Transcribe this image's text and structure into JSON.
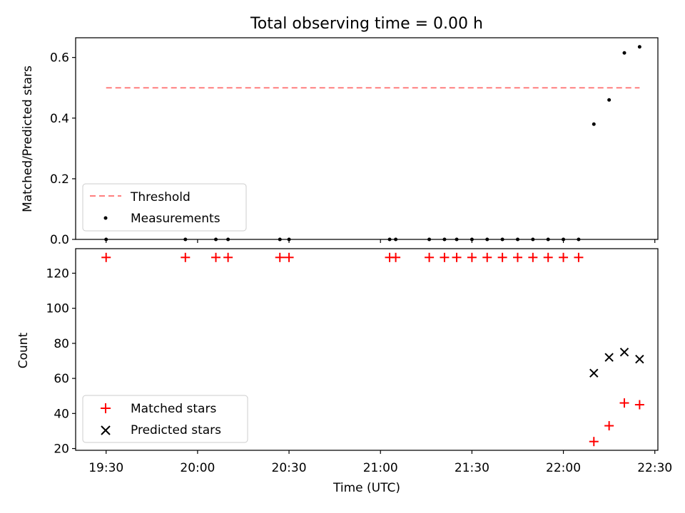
{
  "chart_data": [
    {
      "type": "scatter",
      "title": "Total observing time = 0.00 h",
      "ylabel": "Matched/Predicted stars",
      "xlabel": "",
      "ylim": [
        0,
        0.665
      ],
      "y_ticks": [
        0.0,
        0.2,
        0.4,
        0.6
      ],
      "y_tick_labels": [
        "0.0",
        "0.2",
        "0.4",
        "0.6"
      ],
      "x_ticks_shared": true,
      "grid": false,
      "legend_position": "lower-left",
      "series": [
        {
          "name": "Threshold",
          "kind": "line",
          "style": "dashed",
          "color": "#ff7f7f",
          "x": [
            "19:30",
            "22:25"
          ],
          "y": [
            0.5,
            0.5
          ]
        },
        {
          "name": "Measurements",
          "kind": "points",
          "marker": "dot",
          "color": "#000000",
          "x": [
            "19:30",
            "19:56",
            "20:06",
            "20:10",
            "20:27",
            "20:30",
            "21:03",
            "21:05",
            "21:16",
            "21:21",
            "21:25",
            "21:30",
            "21:35",
            "21:40",
            "21:45",
            "21:50",
            "21:55",
            "22:00",
            "22:05",
            "22:10",
            "22:15",
            "22:20",
            "22:25"
          ],
          "y": [
            0,
            0,
            0,
            0,
            0,
            0,
            0,
            0,
            0,
            0,
            0,
            0,
            0,
            0,
            0,
            0,
            0,
            0,
            0,
            0.38,
            0.46,
            0.615,
            0.635
          ]
        }
      ]
    },
    {
      "type": "scatter",
      "title": "",
      "ylabel": "Count",
      "xlabel": "Time (UTC)",
      "ylim": [
        19,
        134
      ],
      "y_ticks": [
        20,
        40,
        60,
        80,
        100,
        120
      ],
      "y_tick_labels": [
        "20",
        "40",
        "60",
        "80",
        "100",
        "120"
      ],
      "xlim": [
        "19:20",
        "22:31"
      ],
      "x_ticks": [
        "19:30",
        "20:00",
        "20:30",
        "21:00",
        "21:30",
        "22:00",
        "22:30"
      ],
      "grid": false,
      "legend_position": "lower-left",
      "series": [
        {
          "name": "Matched stars",
          "kind": "points",
          "marker": "plus",
          "color": "#ff0000",
          "x": [
            "19:30",
            "19:56",
            "20:06",
            "20:10",
            "20:27",
            "20:30",
            "21:03",
            "21:05",
            "21:16",
            "21:21",
            "21:25",
            "21:30",
            "21:35",
            "21:40",
            "21:45",
            "21:50",
            "21:55",
            "22:00",
            "22:05",
            "22:10",
            "22:15",
            "22:20",
            "22:25"
          ],
          "y": [
            129,
            129,
            129,
            129,
            129,
            129,
            129,
            129,
            129,
            129,
            129,
            129,
            129,
            129,
            129,
            129,
            129,
            129,
            129,
            24,
            33,
            46,
            45
          ]
        },
        {
          "name": "Predicted stars",
          "kind": "points",
          "marker": "x",
          "color": "#000000",
          "x": [
            "22:10",
            "22:15",
            "22:20",
            "22:25"
          ],
          "y": [
            63,
            72,
            75,
            71
          ]
        }
      ]
    }
  ]
}
